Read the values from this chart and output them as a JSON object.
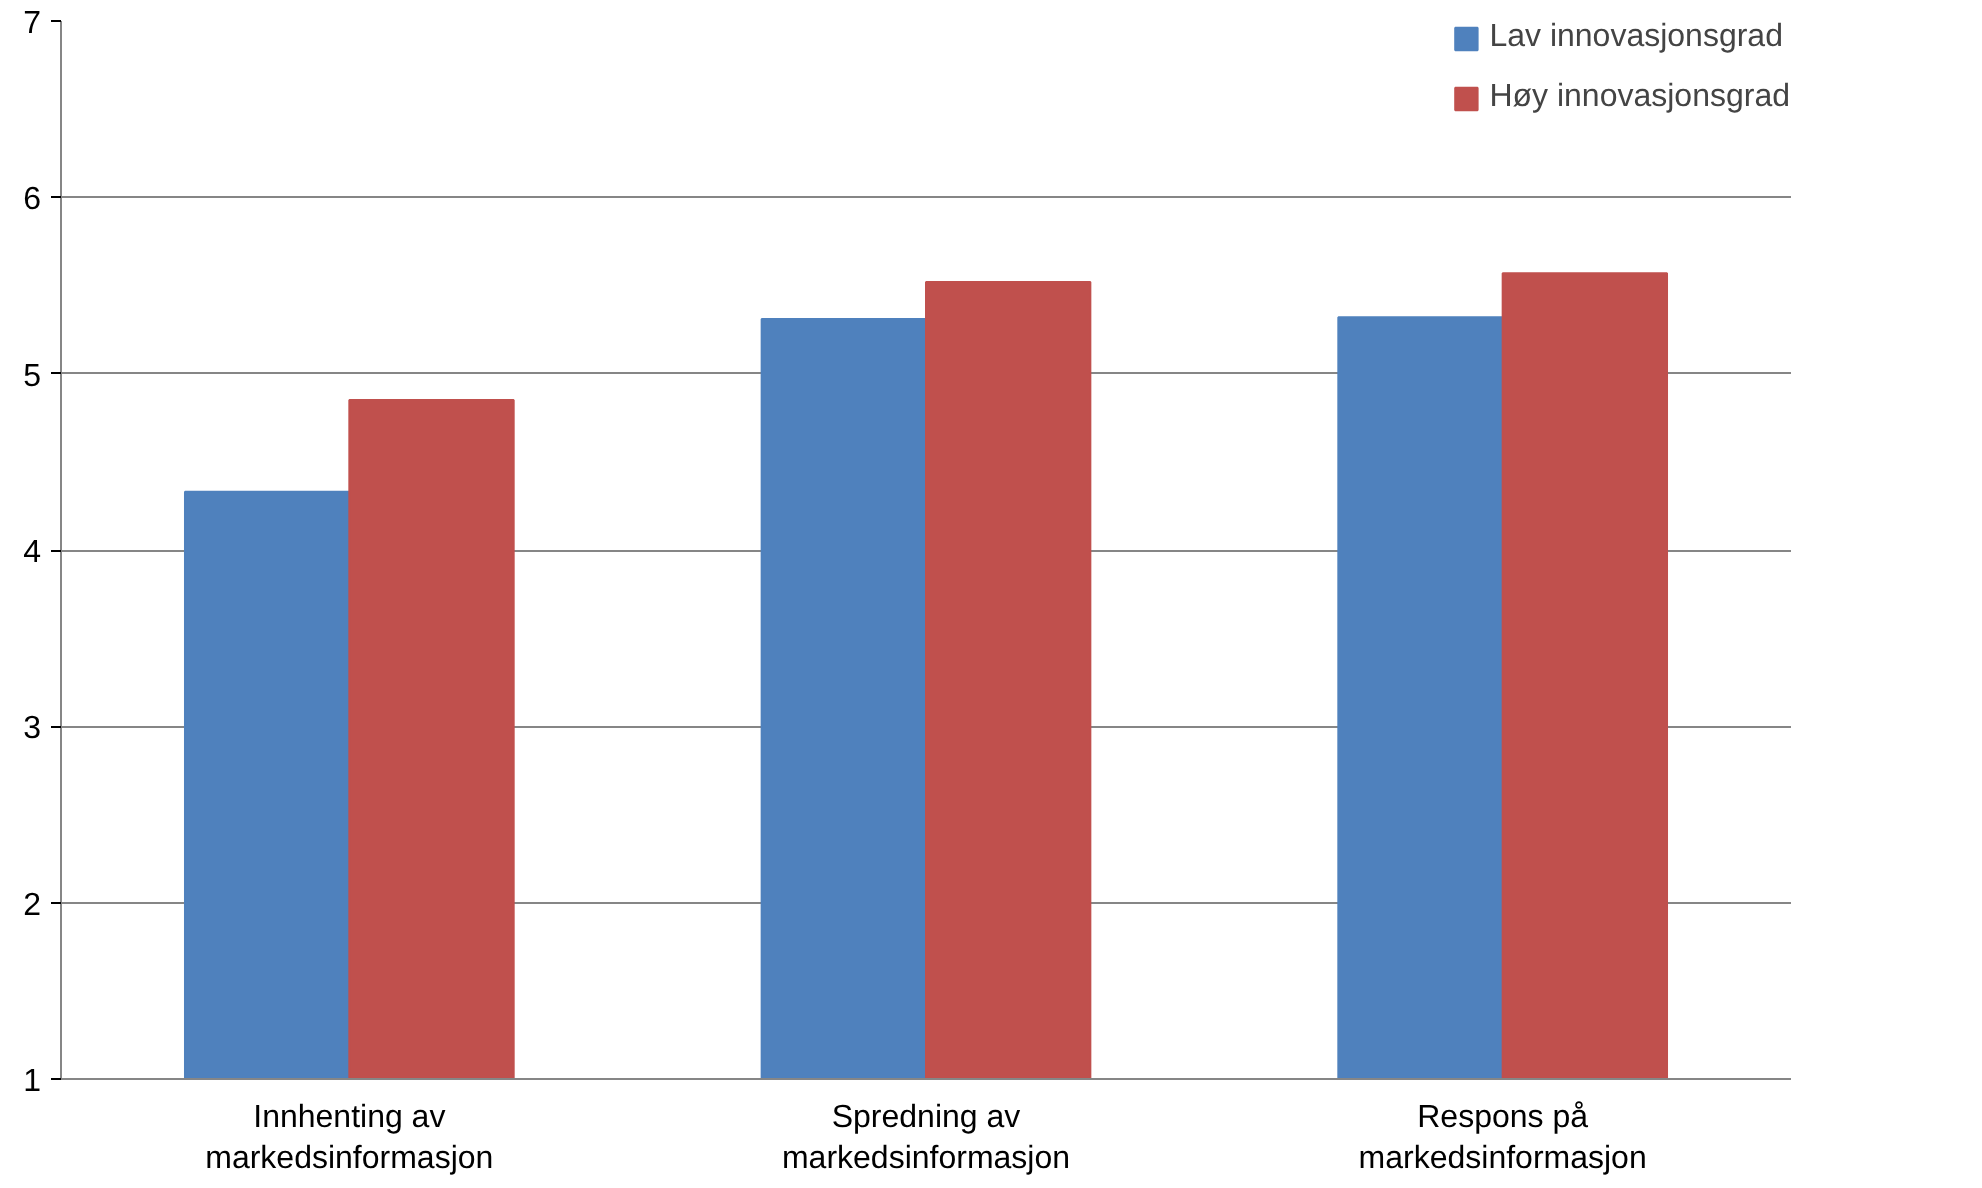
{
  "chart_data": {
    "type": "bar",
    "categories": [
      "Innhenting av\nmarkedsinformasjon",
      "Spredning av\nmarkedsinformasjon",
      "Respons på\nmarkedsinformasjon"
    ],
    "series": [
      {
        "name": "Lav innovasjonsgrad",
        "color": "#4f81bd",
        "values": [
          4.33,
          5.31,
          5.32
        ]
      },
      {
        "name": "Høy innovasjonsgrad",
        "color": "#c0504d",
        "values": [
          4.85,
          5.52,
          5.57
        ]
      }
    ],
    "ylim": [
      1,
      7
    ],
    "yticks": [
      1,
      2,
      3,
      4,
      5,
      6,
      7
    ],
    "grid": "y",
    "legend": "top right"
  }
}
